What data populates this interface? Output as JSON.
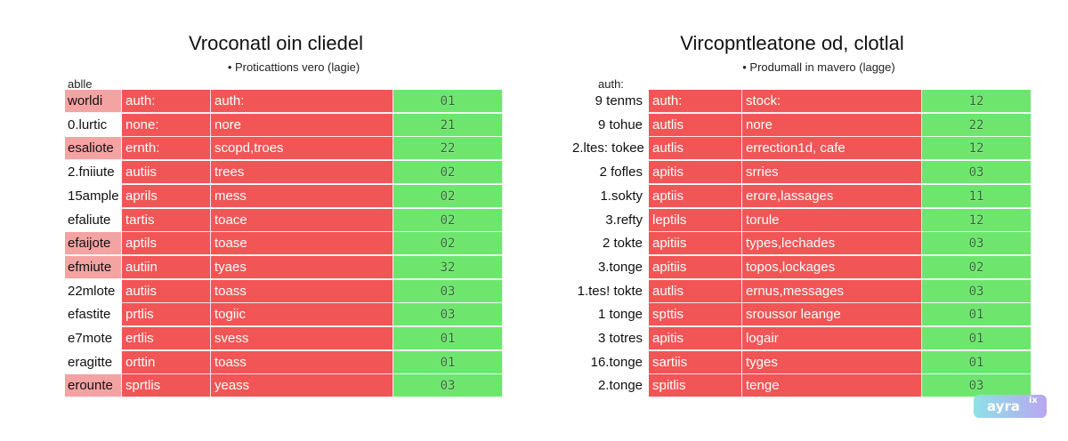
{
  "chart_data": [
    {
      "type": "table",
      "title": "Vroconatl oin cliedel",
      "subtitle": "• Proticattions vero (lagie)",
      "corner_label": "ablle",
      "rows": [
        {
          "label": "worldi",
          "shaded": true,
          "c1": "auth:",
          "c2": "auth:",
          "value": "01"
        },
        {
          "label": "0.lurtic",
          "shaded": false,
          "c1": "none:",
          "c2": "nore",
          "value": "21"
        },
        {
          "label": "esaliote",
          "shaded": true,
          "c1": "ernth:",
          "c2": "scopd,troes",
          "value": "22"
        },
        {
          "label": "2.fniiute",
          "shaded": false,
          "c1": "autiis",
          "c2": "trees",
          "value": "02"
        },
        {
          "label": "15ample",
          "shaded": false,
          "c1": "aprils",
          "c2": "mess",
          "value": "02"
        },
        {
          "label": "efaliute",
          "shaded": false,
          "c1": "tartis",
          "c2": "toace",
          "value": "02"
        },
        {
          "label": "efaijote",
          "shaded": true,
          "c1": "aptils",
          "c2": "toase",
          "value": "02"
        },
        {
          "label": "efmiute",
          "shaded": true,
          "c1": "autiin",
          "c2": "tyaes",
          "value": "32"
        },
        {
          "label": "22mlote",
          "shaded": false,
          "c1": "autiis",
          "c2": "toass",
          "value": "03"
        },
        {
          "label": "efastite",
          "shaded": false,
          "c1": "prtlis",
          "c2": "togiic",
          "value": "03"
        },
        {
          "label": "e7mote",
          "shaded": false,
          "c1": "ertlis",
          "c2": "svess",
          "value": "01"
        },
        {
          "label": "eragitte",
          "shaded": false,
          "c1": "orttin",
          "c2": "toass",
          "value": "01"
        },
        {
          "label": "erounte",
          "shaded": true,
          "c1": "sprtlis",
          "c2": "yeass",
          "value": "03"
        }
      ]
    },
    {
      "type": "table",
      "title": "Vircopntleatone od, clotlal",
      "subtitle": "• Produmall in mavero (lagge)",
      "corner_label": "auth:",
      "rows": [
        {
          "label": "9 tenms",
          "c1": "auth:",
          "c2": "stock:",
          "value": "12"
        },
        {
          "label": "9 tohue",
          "c1": "autlis",
          "c2": "nore",
          "value": "22"
        },
        {
          "label": "2.ltes: tokee",
          "c1": "autlis",
          "c2": "errection1d, cafe",
          "value": "12"
        },
        {
          "label": "2 fofles",
          "c1": "apitis",
          "c2": "srries",
          "value": "03"
        },
        {
          "label": "1.sokty",
          "c1": "aptiis",
          "c2": "erore,lassages",
          "value": "11"
        },
        {
          "label": "3.refty",
          "c1": "leptils",
          "c2": "torule",
          "value": "12"
        },
        {
          "label": "2 tokte",
          "c1": "apitiis",
          "c2": "types,lechades",
          "value": "03"
        },
        {
          "label": "3.tonge",
          "c1": "apitiis",
          "c2": "topos,lockages",
          "value": "02"
        },
        {
          "label": "1.tes! tokte",
          "c1": "autlis",
          "c2": "ernus,messages",
          "value": "03"
        },
        {
          "label": "1 tonge",
          "c1": "spttis",
          "c2": "sroussor leange",
          "value": "01"
        },
        {
          "label": "3 totres",
          "c1": "apitis",
          "c2": "logair",
          "value": "01"
        },
        {
          "label": "16.tonge",
          "c1": "sartiis",
          "c2": "tyges",
          "value": "01"
        },
        {
          "label": "2.tonge",
          "c1": "spitlis",
          "c2": "tenge",
          "value": "03"
        }
      ]
    }
  ],
  "watermark": {
    "text": "ayra",
    "sup": "ix"
  }
}
